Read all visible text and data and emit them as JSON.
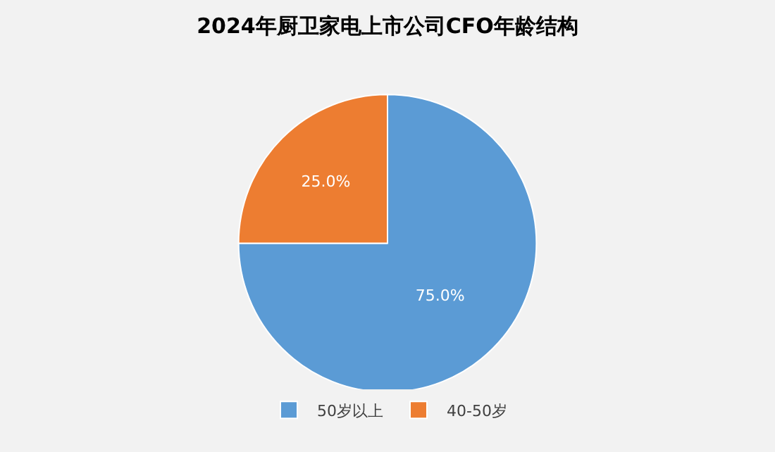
{
  "chart_data": {
    "type": "pie",
    "title": "2024年厨卫家电上市公司CFO年龄结构",
    "categories": [
      "50岁以上",
      "40-50岁"
    ],
    "values": [
      75.0,
      25.0
    ],
    "colors": [
      "#5b9bd5",
      "#ed7d31"
    ],
    "value_labels": [
      "75.0%",
      "25.0%"
    ],
    "legend": "bottom"
  }
}
